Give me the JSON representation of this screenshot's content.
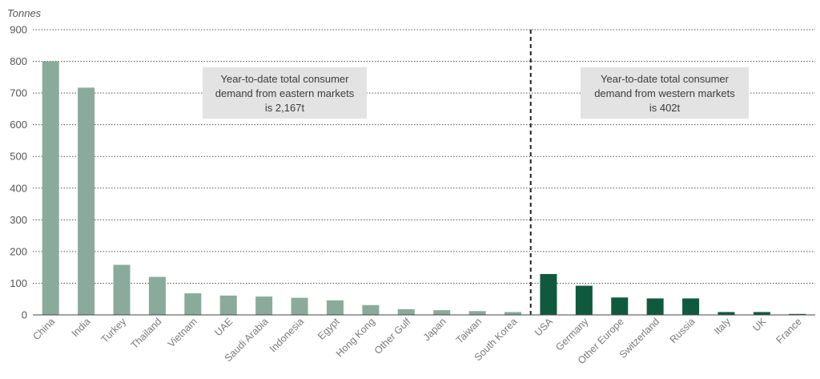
{
  "chart_data": {
    "type": "bar",
    "ylabel": "Tonnes",
    "ylim": [
      0,
      900
    ],
    "yticks": [
      0,
      100,
      200,
      300,
      400,
      500,
      600,
      700,
      800,
      900
    ],
    "grid": true,
    "categories": [
      "China",
      "India",
      "Turkey",
      "Thailand",
      "Vietnam",
      "UAE",
      "Saudi Arabia",
      "Indonesia",
      "Egypt",
      "Hong Kong",
      "Other Gulf",
      "Japan",
      "Taiwan",
      "South Korea",
      "USA",
      "Germany",
      "Other Europe",
      "Switzerland",
      "Russia",
      "Italy",
      "UK",
      "France"
    ],
    "series": [
      {
        "values": [
          800,
          717,
          158,
          120,
          68,
          61,
          58,
          54,
          46,
          31,
          18,
          15,
          12,
          9,
          null,
          null,
          null,
          null,
          null,
          null,
          null,
          null
        ],
        "color": "#8aab9c"
      },
      {
        "values": [
          null,
          null,
          null,
          null,
          null,
          null,
          null,
          null,
          null,
          null,
          null,
          null,
          null,
          null,
          129,
          92,
          55,
          52,
          52,
          9,
          9,
          3
        ],
        "color": "#0f5a3e"
      }
    ],
    "divider_after": "South Korea",
    "annotations": [
      {
        "lines": [
          "Year-to-date total consumer",
          "demand from eastern markets",
          "is 2,167t"
        ]
      },
      {
        "lines": [
          "Year-to-date total consumer",
          "demand from western markets",
          "is 402t"
        ]
      }
    ]
  }
}
